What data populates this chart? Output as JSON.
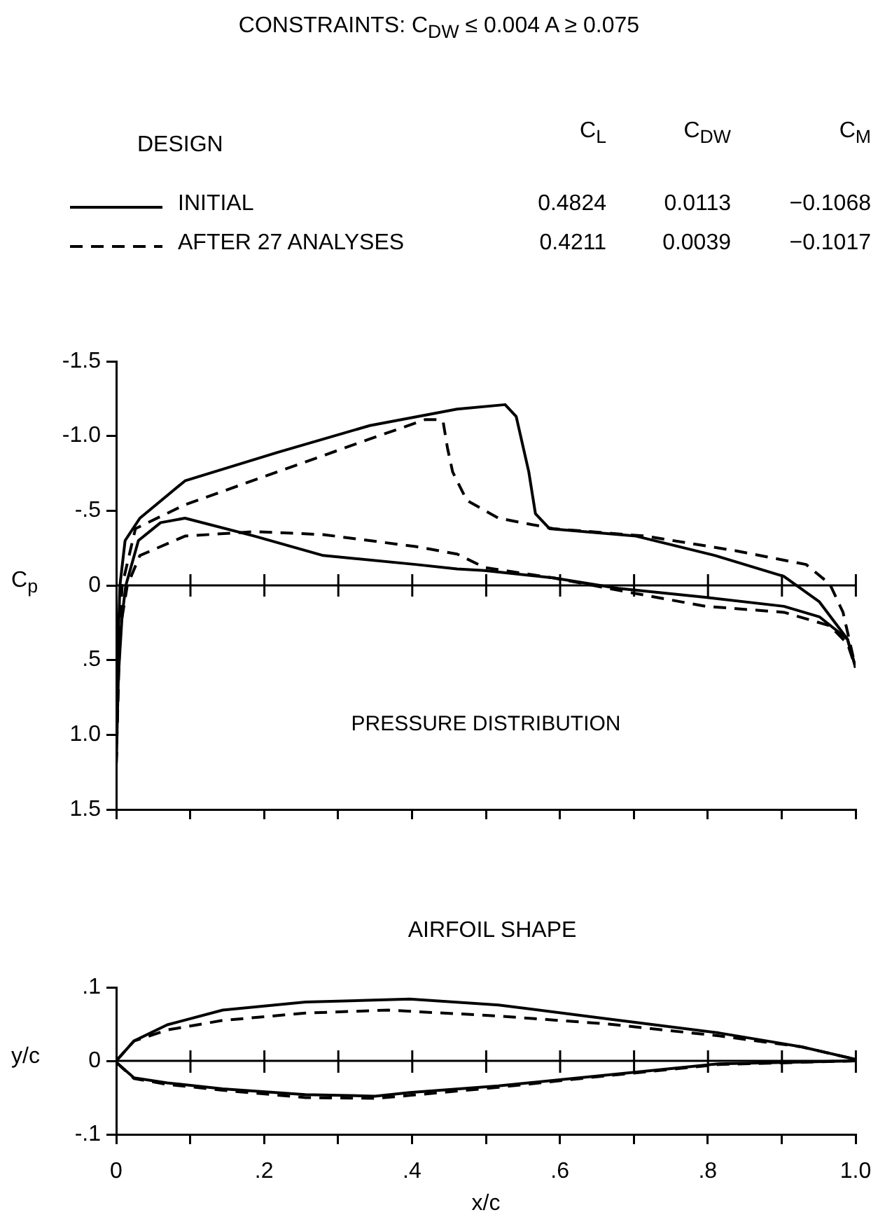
{
  "chart_data": [
    {
      "type": "line",
      "title": "CONSTRAINTS: C$_{D}$$_{W}$ ≤ 0.004 A ≥ 0.075",
      "subtitle": "PRESSURE DISTRIBUTION",
      "ylabel": "C$_{p}$",
      "legend_title": "DESIGN",
      "legend": "top",
      "annotations": [
        "C$_{L}$",
        "C$_{D}$$_{W}$",
        "C$_{M}$",
        "0.4824",
        "0.0113",
        "−0.1068",
        "0.4211",
        "0.0039",
        "−0.1017"
      ],
      "xlim": [
        0,
        1
      ],
      "xticks": [
        {
          "value": 0,
          "label": null
        },
        {
          "value": 0.1,
          "label": null
        },
        {
          "value": 0.2,
          "label": null
        },
        {
          "value": 0.3,
          "label": null
        },
        {
          "value": 0.4,
          "label": null
        },
        {
          "value": 0.5,
          "label": null
        },
        {
          "value": 0.6,
          "label": null
        },
        {
          "value": 0.7,
          "label": null
        },
        {
          "value": 0.8,
          "label": null
        },
        {
          "value": 0.9,
          "label": null
        },
        {
          "value": 1,
          "label": null
        }
      ],
      "ylim": [
        1.5,
        -1.5
      ],
      "yticks": [
        {
          "value": -1.5,
          "label": "-1.5"
        },
        {
          "value": -1,
          "label": "-1.0"
        },
        {
          "value": -0.5,
          "label": "-.5"
        },
        0,
        {
          "value": 0.5,
          "label": ".5"
        },
        {
          "value": 1,
          "label": "1.0"
        },
        {
          "value": 1.5,
          "label": "1.5"
        }
      ],
      "tick_labels": "y",
      "ref_lines": [
        {
          "axis": "y",
          "value": 0,
          "label": null
        }
      ],
      "series": [
        {
          "name": "INITIAL",
          "color": "#000000",
          "line_style": "solid",
          "x": [
            0,
            0.002,
            0.005,
            0.012,
            0.032,
            0.093,
            0.218,
            0.343,
            0.461,
            0.526,
            0.541,
            0.558,
            0.567,
            0.586,
            0.703,
            0.81,
            0.903,
            0.951,
            0.989,
            1
          ],
          "values": [
            1.2,
            0.5,
            0,
            -0.3,
            -0.45,
            -0.7,
            -0.89,
            -1.07,
            -1.18,
            -1.21,
            -1.13,
            -0.76,
            -0.48,
            -0.38,
            -0.33,
            -0.2,
            -0.06,
            0.11,
            0.36,
            0.55
          ]
        },
        {
          "color": "#000000",
          "line_style": "solid",
          "x": [
            0,
            0.003,
            0.008,
            0.013,
            0.03,
            0.06,
            0.093,
            0.187,
            0.28,
            0.405,
            0.461,
            0.498,
            0.591,
            0.679,
            0.797,
            0.903,
            0.951,
            0.989,
            1
          ],
          "values": [
            1.2,
            0.6,
            0.2,
            0,
            -0.3,
            -0.42,
            -0.45,
            -0.33,
            -0.2,
            -0.14,
            -0.11,
            -0.1,
            -0.05,
            0.02,
            0.08,
            0.14,
            0.21,
            0.36,
            0.55
          ]
        },
        {
          "name": "AFTER 27 ANALYSES",
          "color": "#000000",
          "line_style": "dashed",
          "x": [
            0,
            0.003,
            0.008,
            0.026,
            0.093,
            0.218,
            0.343,
            0.418,
            0.437,
            0.442,
            0.448,
            0.455,
            0.474,
            0.517,
            0.591,
            0.716,
            0.84,
            0.933,
            0.965,
            0.983,
            1
          ],
          "values": [
            1.2,
            0.5,
            0,
            -0.38,
            -0.54,
            -0.76,
            -0.98,
            -1.11,
            -1.11,
            -1.1,
            -0.92,
            -0.76,
            -0.57,
            -0.45,
            -0.38,
            -0.33,
            -0.23,
            -0.14,
            -0.01,
            0.18,
            0.55
          ]
        },
        {
          "color": "#000000",
          "line_style": "dashed",
          "x": [
            0,
            0.005,
            0.015,
            0.032,
            0.093,
            0.187,
            0.28,
            0.405,
            0.461,
            0.498,
            0.591,
            0.698,
            0.797,
            0.903,
            0.965,
            0.989,
            1
          ],
          "values": [
            1.2,
            0.3,
            0,
            -0.2,
            -0.33,
            -0.36,
            -0.34,
            -0.26,
            -0.21,
            -0.12,
            -0.05,
            0.05,
            0.14,
            0.18,
            0.27,
            0.39,
            0.55
          ]
        }
      ]
    },
    {
      "type": "line",
      "title": "AIRFOIL SHAPE",
      "xlabel": "x/c",
      "ylabel": "y/c",
      "xlim": [
        0,
        1
      ],
      "xticks": [
        0,
        {
          "value": 0.1,
          "label": null
        },
        {
          "value": 0.2,
          "label": ".2"
        },
        {
          "value": 0.3,
          "label": null
        },
        {
          "value": 0.4,
          "label": ".4"
        },
        {
          "value": 0.5,
          "label": null
        },
        {
          "value": 0.6,
          "label": ".6"
        },
        {
          "value": 0.7,
          "label": null
        },
        {
          "value": 0.8,
          "label": ".8"
        },
        {
          "value": 0.9,
          "label": null
        },
        {
          "value": 1,
          "label": "1.0"
        }
      ],
      "ylim": [
        -0.1,
        0.1
      ],
      "yticks": [
        {
          "value": -0.1,
          "label": "-.1"
        },
        0,
        {
          "value": 0.1,
          "label": ".1"
        }
      ],
      "ref_lines": [
        {
          "axis": "y",
          "value": 0,
          "label": null
        }
      ],
      "series": [
        {
          "color": "#000000",
          "line_style": "solid",
          "x": [
            0,
            0.024,
            0.069,
            0.144,
            0.256,
            0.397,
            0.517,
            0.666,
            0.815,
            0.927,
            1,
            1,
            0.815,
            0.666,
            0.517,
            0.397,
            0.35,
            0.256,
            0.144,
            0.069,
            0.024,
            0
          ],
          "values": [
            0,
            0.027,
            0.049,
            0.069,
            0.08,
            0.084,
            0.076,
            0.057,
            0.038,
            0.019,
            0.002,
            0,
            -0.004,
            -0.019,
            -0.034,
            -0.043,
            -0.048,
            -0.046,
            -0.038,
            -0.03,
            -0.023,
            -0.002
          ]
        },
        {
          "color": "#000000",
          "line_style": "dashed",
          "x": [
            0,
            0.024,
            0.069,
            0.144,
            0.256,
            0.368,
            0.517,
            0.666,
            0.815,
            0.927,
            1,
            1,
            0.815,
            0.666,
            0.517,
            0.397,
            0.35,
            0.256,
            0.144,
            0.069,
            0.024,
            0
          ],
          "values": [
            0,
            0.027,
            0.042,
            0.055,
            0.065,
            0.069,
            0.061,
            0.05,
            0.034,
            0.019,
            0.002,
            0,
            -0.005,
            -0.02,
            -0.036,
            -0.047,
            -0.051,
            -0.05,
            -0.04,
            -0.032,
            -0.024,
            -0.002
          ]
        }
      ]
    }
  ]
}
